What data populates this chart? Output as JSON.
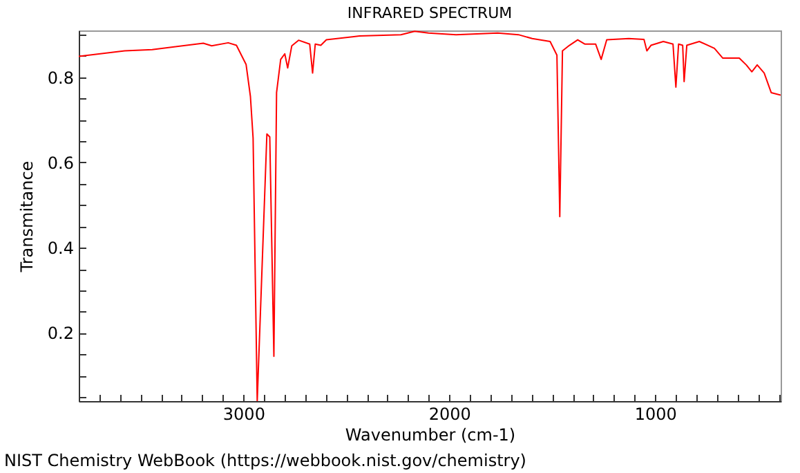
{
  "chart_data": {
    "type": "line",
    "title": "INFRARED SPECTRUM",
    "xlabel": "Wavenumber (cm-1)",
    "ylabel": "Transmitance",
    "annotations": [
      "NIST Chemistry WebBook (https://webbook.nist.gov/chemistry)"
    ],
    "xlim": [
      3800,
      390
    ],
    "ylim": [
      0.04,
      0.91
    ],
    "xticks": [
      {
        "value": 3800,
        "label": null
      },
      {
        "value": 3700,
        "label": null
      },
      {
        "value": 3600,
        "label": null
      },
      {
        "value": 3500,
        "label": null
      },
      {
        "value": 3400,
        "label": null
      },
      {
        "value": 3300,
        "label": null
      },
      {
        "value": 3200,
        "label": null
      },
      {
        "value": 3100,
        "label": null
      },
      3000,
      {
        "value": 2900,
        "label": null
      },
      {
        "value": 2800,
        "label": null
      },
      {
        "value": 2700,
        "label": null
      },
      {
        "value": 2600,
        "label": null
      },
      {
        "value": 2500,
        "label": null
      },
      {
        "value": 2400,
        "label": null
      },
      {
        "value": 2300,
        "label": null
      },
      {
        "value": 2200,
        "label": null
      },
      {
        "value": 2100,
        "label": null
      },
      2000,
      {
        "value": 1900,
        "label": null
      },
      {
        "value": 1800,
        "label": null
      },
      {
        "value": 1700,
        "label": null
      },
      {
        "value": 1600,
        "label": null
      },
      {
        "value": 1500,
        "label": null
      },
      {
        "value": 1400,
        "label": null
      },
      {
        "value": 1300,
        "label": null
      },
      {
        "value": 1200,
        "label": null
      },
      {
        "value": 1100,
        "label": null
      },
      1000,
      {
        "value": 900,
        "label": null
      },
      {
        "value": 800,
        "label": null
      },
      {
        "value": 700,
        "label": null
      },
      {
        "value": 600,
        "label": null
      },
      {
        "value": 500,
        "label": null
      },
      {
        "value": 400,
        "label": null
      }
    ],
    "yticks": [
      {
        "value": 0.05,
        "label": null
      },
      {
        "value": 0.1,
        "label": null
      },
      {
        "value": 0.15,
        "label": null
      },
      0.2,
      {
        "value": 0.25,
        "label": null
      },
      {
        "value": 0.3,
        "label": null
      },
      {
        "value": 0.35,
        "label": null
      },
      0.4,
      {
        "value": 0.45,
        "label": null
      },
      {
        "value": 0.5,
        "label": null
      },
      {
        "value": 0.55,
        "label": null
      },
      0.6,
      {
        "value": 0.65,
        "label": null
      },
      {
        "value": 0.7,
        "label": null
      },
      {
        "value": 0.75,
        "label": null
      },
      0.8,
      {
        "value": 0.85,
        "label": null
      },
      {
        "value": 0.9,
        "label": null
      }
    ],
    "grid": false,
    "legend": false,
    "marker": "none",
    "line_style": "solid",
    "x": [
      3800,
      3577,
      3443,
      3195,
      3154,
      3074,
      3034,
      2987,
      2966,
      2953,
      2933,
      2886,
      2872,
      2852,
      2839,
      2819,
      2799,
      2785,
      2765,
      2732,
      2678,
      2664,
      2651,
      2624,
      2597,
      2436,
      2235,
      2168,
      2101,
      1967,
      1765,
      1664,
      1597,
      1510,
      1477,
      1463,
      1450,
      1416,
      1376,
      1342,
      1289,
      1262,
      1235,
      1128,
      1054,
      1040,
      1020,
      960,
      913,
      899,
      886,
      866,
      859,
      846,
      785,
      712,
      671,
      591,
      557,
      530,
      504,
      470,
      436,
      390
    ],
    "series": [
      {
        "color": "#ff0000",
        "values": [
          0.849,
          0.862,
          0.865,
          0.88,
          0.874,
          0.881,
          0.875,
          0.83,
          0.755,
          0.657,
          0.04,
          0.667,
          0.66,
          0.145,
          0.764,
          0.842,
          0.855,
          0.822,
          0.874,
          0.887,
          0.878,
          0.81,
          0.878,
          0.875,
          0.888,
          0.897,
          0.9,
          0.908,
          0.904,
          0.9,
          0.904,
          0.9,
          0.891,
          0.884,
          0.852,
          0.473,
          0.862,
          0.875,
          0.888,
          0.878,
          0.878,
          0.842,
          0.888,
          0.891,
          0.889,
          0.862,
          0.875,
          0.884,
          0.878,
          0.777,
          0.878,
          0.875,
          0.79,
          0.875,
          0.884,
          0.868,
          0.845,
          0.845,
          0.829,
          0.813,
          0.829,
          0.81,
          0.764,
          0.758
        ]
      }
    ]
  }
}
